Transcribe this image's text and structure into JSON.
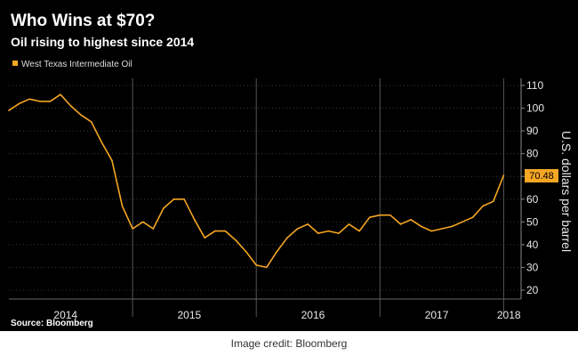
{
  "title": "Who Wins at $70?",
  "subtitle": "Oil rising to highest since 2014",
  "legend": "West Texas Intermediate Oil",
  "source": "Source: Bloomberg",
  "caption": "Image credit: Bloomberg",
  "colors": {
    "line": "#f5a623",
    "background": "#000000",
    "last_value_box": "#f5a623"
  },
  "chart_data": {
    "type": "line",
    "title": "Who Wins at $70?",
    "subtitle": "Oil rising to highest since 2014",
    "ylabel": "U.S. dollars per barrel",
    "xlabel": "",
    "ylim": [
      20,
      110
    ],
    "yticks": [
      20,
      30,
      40,
      50,
      60,
      70,
      80,
      90,
      100,
      110
    ],
    "xlim": [
      "2014-01",
      "2018-02"
    ],
    "year_labels": [
      "2014",
      "2015",
      "2016",
      "2017",
      "2018"
    ],
    "last_value_label": "70.48",
    "grid": true,
    "legend_position": "top-left",
    "series": [
      {
        "name": "West Texas Intermediate Oil",
        "x": [
          "2014-01",
          "2014-02",
          "2014-03",
          "2014-04",
          "2014-05",
          "2014-06",
          "2014-07",
          "2014-08",
          "2014-09",
          "2014-10",
          "2014-11",
          "2014-12",
          "2015-01",
          "2015-02",
          "2015-03",
          "2015-04",
          "2015-05",
          "2015-06",
          "2015-07",
          "2015-08",
          "2015-09",
          "2015-10",
          "2015-11",
          "2015-12",
          "2016-01",
          "2016-02",
          "2016-03",
          "2016-04",
          "2016-05",
          "2016-06",
          "2016-07",
          "2016-08",
          "2016-09",
          "2016-10",
          "2016-11",
          "2016-12",
          "2017-01",
          "2017-02",
          "2017-03",
          "2017-04",
          "2017-05",
          "2017-06",
          "2017-07",
          "2017-08",
          "2017-09",
          "2017-10",
          "2017-11",
          "2017-12",
          "2018-01"
        ],
        "values": [
          99,
          102,
          104,
          103,
          103,
          106,
          101,
          97,
          94,
          85,
          77,
          57,
          47,
          50,
          47,
          56,
          60,
          60,
          51,
          43,
          46,
          46,
          42,
          37,
          31,
          30,
          37,
          43,
          47,
          49,
          45,
          46,
          45,
          49,
          46,
          52,
          53,
          53,
          49,
          51,
          48,
          46,
          47,
          48,
          50,
          52,
          57,
          59,
          70.48
        ]
      }
    ]
  }
}
